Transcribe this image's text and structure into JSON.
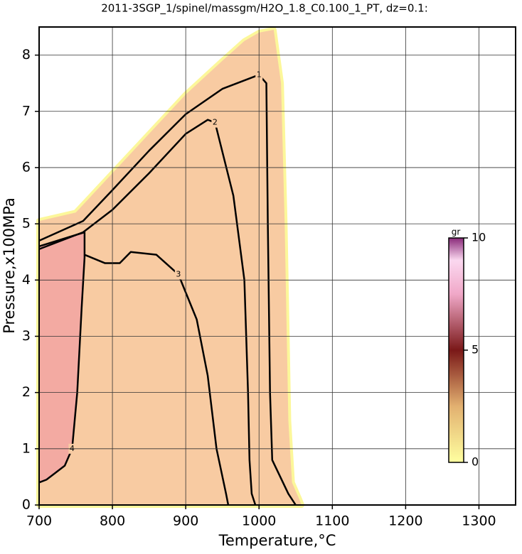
{
  "chart_data": {
    "type": "contour",
    "title": "2011-3SGP_1/spinel/massgm/H2O_1.8_C0.100_1_PT, dz=0.1:",
    "x_label": "Temperature,°C",
    "y_label": "Pressure,x100MPa",
    "xlim": [
      700,
      1350
    ],
    "ylim": [
      0,
      8.5
    ],
    "xticks": [
      700,
      800,
      900,
      1000,
      1100,
      1200,
      1300
    ],
    "yticks": [
      0,
      1,
      2,
      3,
      4,
      5,
      6,
      7,
      8
    ],
    "grid": true,
    "field": {
      "color": "#f8cba2",
      "edge_color": "#fcf79a",
      "x": [
        700,
        750,
        800,
        850,
        900,
        950,
        980,
        1000,
        1020,
        1030,
        1035,
        1040,
        1045,
        1055,
        1058,
        1058,
        700
      ],
      "y": [
        5.05,
        5.2,
        5.9,
        6.6,
        7.3,
        7.9,
        8.25,
        8.4,
        8.45,
        7.5,
        5,
        1.5,
        0.4,
        0.1,
        0,
        0,
        0
      ]
    },
    "contours": [
      {
        "level": 1,
        "x": [
          700,
          760,
          800,
          850,
          900,
          950,
          1000,
          1010,
          1012,
          1015,
          1018,
          1040,
          1050
        ],
        "y": [
          4.7,
          5.05,
          5.6,
          6.3,
          6.95,
          7.4,
          7.65,
          7.5,
          5,
          2,
          0.8,
          0.2,
          0
        ]
      },
      {
        "level": 2,
        "x": [
          700,
          760,
          800,
          850,
          900,
          930,
          940,
          965,
          980,
          985,
          987,
          990,
          995
        ],
        "y": [
          4.55,
          4.85,
          5.25,
          5.9,
          6.6,
          6.85,
          6.8,
          5.5,
          4,
          2,
          0.8,
          0.2,
          0
        ]
      },
      {
        "level": 3,
        "x": [
          762,
          790,
          810,
          825,
          860,
          890,
          915,
          930,
          942,
          955,
          958
        ],
        "y": [
          4.45,
          4.3,
          4.3,
          4.5,
          4.45,
          4.1,
          3.3,
          2.3,
          1,
          0.2,
          0
        ]
      },
      {
        "level": 4,
        "fill": "#f3aaa2",
        "x": [
          700,
          762,
          762,
          758,
          752,
          745,
          735,
          720,
          710,
          700
        ],
        "y": [
          4.6,
          4.85,
          4.4,
          3.5,
          2,
          1,
          0.7,
          0.55,
          0.45,
          0.4
        ]
      }
    ],
    "colorbar": {
      "label": "gr",
      "lim": [
        0,
        10
      ],
      "ticks": [
        0,
        5,
        10
      ]
    }
  }
}
